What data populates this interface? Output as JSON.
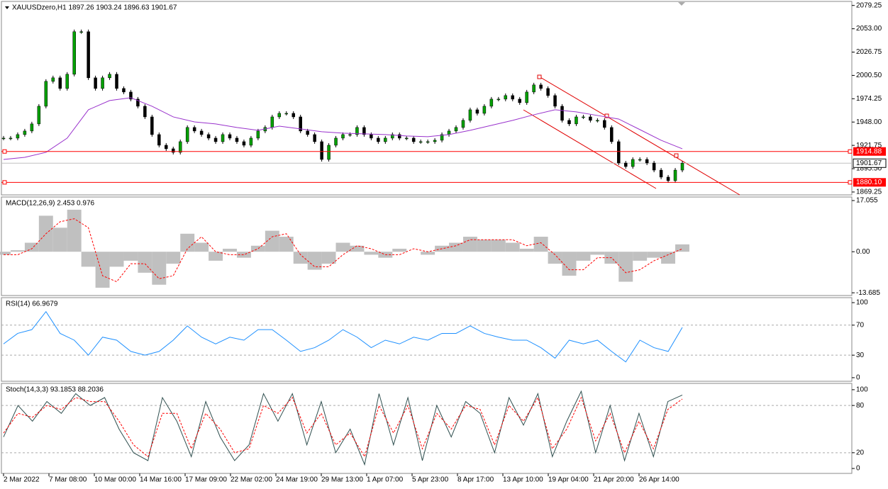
{
  "chart_data": [
    {
      "type": "candlestick",
      "title": "XAUUSDzero,H1  1897.26 1903.24 1896.63 1901.67",
      "ylim": [
        1866,
        2083
      ],
      "yticks": [
        2079.25,
        {
          "value": 2053,
          "label": "2053.00"
        },
        2026.75,
        {
          "value": 2000.5,
          "label": "2000.50"
        },
        1974.25,
        {
          "value": 1948,
          "label": "1948.00"
        },
        1921.75,
        {
          "value": 1895.5,
          "label": "1895.50"
        },
        1869.25
      ],
      "hlines": [
        1914.88,
        {
          "value": 1880.1,
          "label": "1880.10"
        }
      ],
      "hline_color": "#ff0000",
      "last": 1901.67,
      "series": [
        {
          "style": "candles",
          "color": "#00a000",
          "down_color": "#000000",
          "values": [
            1929.9,
            1929.9,
            1933.9,
            1937.9,
            1945.9,
            1965.8,
            1993.8,
            1997.8,
            1985.8,
            2001.8,
            2049.7,
            2049.7,
            1997.8,
            1985.8,
            1997.8,
            2001.8,
            1985.8,
            1981.8,
            1973.8,
            1965.8,
            1953.8,
            1933.9,
            1921.9,
            1917.9,
            1913.9,
            1925.9,
            1941.9,
            1937.9,
            1933.9,
            1929.9,
            1925.9,
            1933.9,
            1929.9,
            1925.9,
            1921.9,
            1929.9,
            1937.9,
            1941.9,
            1953.8,
            1957.8,
            1957.8,
            1953.8,
            1937.9,
            1933.9,
            1925.9,
            1905.9,
            1921.9,
            1929.9,
            1933.9,
            1933.9,
            1941.9,
            1933.9,
            1929.9,
            1925.9,
            1929.9,
            1933.9,
            1929.9,
            1929.9,
            1925.9,
            1925.9,
            1925.9,
            1927.5,
            1933.9,
            1937.9,
            1941.9,
            1949.9,
            1961.8,
            1957.8,
            1965.8,
            1973.8,
            1973.8,
            1977.8,
            1973.8,
            1969.8,
            1981.8,
            1989.8,
            1985.8,
            1977.8,
            1965.8,
            1949.9,
            1945.9,
            1953.8,
            1953.8,
            1949.9,
            1949.9,
            1941.9,
            1925.9,
            1901.9,
            1897.9,
            1905.9,
            1905.9,
            1901.9,
            1893.9,
            1886.0,
            1882.0,
            1893.9,
            1901.67
          ]
        },
        {
          "style": "line",
          "color": "#9932cc",
          "values": [
            1905.9,
            1908.3,
            1913.9,
            1929.9,
            1961.8,
            1972.2,
            1975.4,
            1965.8,
            1953.8,
            1948.2,
            1945.9,
            1941.9,
            1938.7,
            1943.4,
            1940.3,
            1937.1,
            1935.5,
            1934.7,
            1933.9,
            1932.3,
            1931.5,
            1933.9,
            1938.7,
            1944.3,
            1949.9,
            1956.2,
            1961.8,
            1959.4,
            1955.4,
            1951.4,
            1939.5,
            1927.5,
            1917.9
          ]
        }
      ]
    },
    {
      "type": "histogram",
      "title": "MACD(12,26,9) 2.453 0.976",
      "ylim": [
        -14.6,
        18.0
      ],
      "yticks": [
        17.055,
        {
          "value": 0,
          "label": "0.00"
        },
        -13.685
      ],
      "series": [
        {
          "style": "bars",
          "color": "#c0c0c0",
          "values": [
            -1,
            0.5,
            3,
            12,
            8,
            14,
            -5,
            -12,
            -5,
            -3,
            -7,
            -11,
            -4,
            6,
            3,
            -3,
            1,
            -2,
            2,
            7,
            5,
            -4,
            -6,
            -4,
            3,
            2,
            -1,
            -2,
            1,
            0,
            -1,
            2,
            3,
            5,
            4,
            4,
            3,
            1,
            5,
            -4,
            -8,
            -3,
            -1,
            -4,
            -10,
            -3,
            -2,
            -4,
            2.453
          ]
        },
        {
          "style": "dashed",
          "color": "#ff0000",
          "values": [
            -1,
            -1,
            1,
            6,
            10,
            11,
            8,
            -8,
            -10,
            -4,
            -4,
            -9,
            -8,
            1,
            5,
            0,
            -1,
            -1,
            1,
            5,
            6,
            -1,
            -5,
            -5,
            -1,
            2,
            1,
            -1,
            -1,
            1,
            0,
            1,
            2,
            4,
            4,
            4,
            4,
            2,
            3,
            -1,
            -6,
            -6,
            -2,
            -2,
            -7,
            -6,
            -3,
            -1,
            0.976
          ]
        }
      ]
    },
    {
      "type": "line",
      "title": "RSI(14) 66.9679",
      "ylim": [
        -4.8,
        105.7
      ],
      "yticks": [
        100,
        70,
        30,
        0
      ],
      "levels": [
        70,
        30
      ],
      "series": [
        {
          "style": "line",
          "color": "#1e90ff",
          "values": [
            45,
            59,
            64,
            88,
            59,
            50,
            30,
            54,
            50,
            35,
            30,
            35,
            50,
            69,
            54,
            45,
            54,
            50,
            64,
            64,
            50,
            35,
            40,
            50,
            64,
            54,
            40,
            50,
            45,
            54,
            50,
            59,
            59,
            69,
            59,
            54,
            50,
            50,
            40,
            26,
            50,
            45,
            50,
            35,
            21,
            50,
            40,
            35,
            66.9679
          ]
        }
      ]
    },
    {
      "type": "line",
      "title": "Stoch(14,3,3) 93.1853 88.2036",
      "ylim": [
        -6.25,
        107.1
      ],
      "yticks": [
        100,
        80,
        20,
        0
      ],
      "levels": [
        80,
        20
      ],
      "x_labels": [
        "2 Mar 2022",
        "7 Mar 08:00",
        "10 Mar 00:00",
        "14 Mar 16:00",
        "17 Mar 09:00",
        "22 Mar 02:00",
        "24 Mar 19:00",
        "29 Mar 13:00",
        "1 Apr 07:00",
        "5 Apr 23:00",
        "8 Apr 17:00",
        "13 Apr 10:00",
        "19 Apr 04:00",
        "21 Apr 20:00",
        "26 Apr 14:00"
      ],
      "series": [
        {
          "style": "line",
          "color": "#2f4f4f",
          "values": [
            40,
            80,
            60,
            85,
            70,
            95,
            80,
            90,
            50,
            20,
            10,
            90,
            60,
            15,
            85,
            40,
            10,
            30,
            95,
            60,
            95,
            30,
            85,
            20,
            50,
            5,
            95,
            30,
            90,
            10,
            80,
            40,
            85,
            70,
            20,
            90,
            55,
            95,
            15,
            60,
            98,
            20,
            80,
            10,
            70,
            15,
            85,
            93.1853
          ]
        },
        {
          "style": "dashed",
          "color": "#ff0000",
          "values": [
            45,
            70,
            65,
            80,
            75,
            90,
            85,
            85,
            60,
            30,
            15,
            70,
            70,
            25,
            70,
            50,
            20,
            25,
            80,
            70,
            90,
            45,
            70,
            30,
            45,
            15,
            80,
            45,
            80,
            25,
            70,
            50,
            80,
            75,
            30,
            80,
            60,
            90,
            25,
            50,
            90,
            35,
            70,
            20,
            60,
            25,
            75,
            88.2036
          ]
        }
      ]
    }
  ]
}
